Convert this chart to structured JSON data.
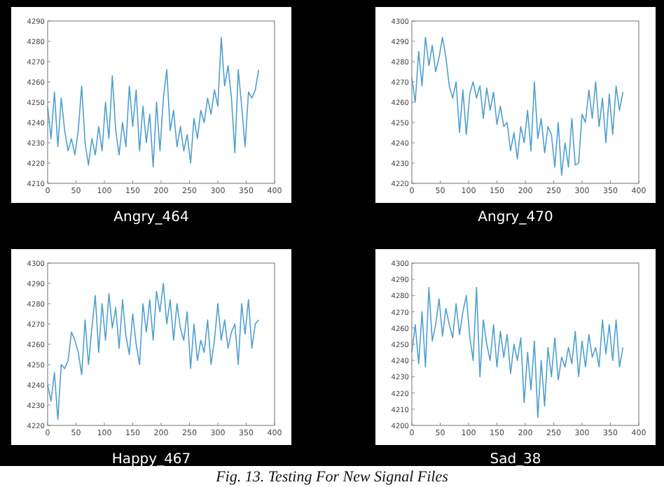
{
  "chart_data": [
    {
      "type": "line",
      "xlabel": "Angry_464",
      "xlim": [
        0,
        400
      ],
      "xticks": [
        0,
        50,
        100,
        150,
        200,
        250,
        300,
        350,
        400
      ],
      "ylim": [
        4210,
        4290
      ],
      "yticks": [
        4210,
        4220,
        4230,
        4240,
        4250,
        4260,
        4270,
        4280,
        4290
      ],
      "x": [
        0,
        6,
        12,
        18,
        24,
        30,
        36,
        42,
        48,
        54,
        60,
        66,
        72,
        78,
        84,
        90,
        96,
        102,
        108,
        114,
        120,
        126,
        132,
        138,
        144,
        150,
        156,
        162,
        168,
        174,
        180,
        186,
        192,
        198,
        204,
        210,
        216,
        222,
        228,
        234,
        240,
        246,
        252,
        258,
        264,
        270,
        276,
        282,
        288,
        294,
        300,
        306,
        312,
        318,
        324,
        330,
        336,
        342,
        348,
        354,
        360,
        366,
        372
      ],
      "series": [
        {
          "color": "#4f9fd0",
          "values": [
            4248,
            4232,
            4255,
            4228,
            4252,
            4236,
            4226,
            4232,
            4224,
            4236,
            4258,
            4230,
            4219,
            4232,
            4224,
            4238,
            4226,
            4250,
            4232,
            4263,
            4236,
            4224,
            4240,
            4228,
            4258,
            4238,
            4256,
            4226,
            4248,
            4230,
            4244,
            4218,
            4250,
            4226,
            4252,
            4266,
            4236,
            4246,
            4228,
            4238,
            4226,
            4234,
            4220,
            4242,
            4232,
            4246,
            4240,
            4252,
            4244,
            4256,
            4248,
            4282,
            4258,
            4268,
            4252,
            4225,
            4266,
            4248,
            4228,
            4255,
            4252,
            4256,
            4266
          ]
        }
      ]
    },
    {
      "type": "line",
      "xlabel": "Angry_470",
      "xlim": [
        0,
        400
      ],
      "xticks": [
        0,
        50,
        100,
        150,
        200,
        250,
        300,
        350,
        400
      ],
      "ylim": [
        4220,
        4300
      ],
      "yticks": [
        4220,
        4230,
        4240,
        4250,
        4260,
        4270,
        4280,
        4290,
        4300
      ],
      "x": [
        0,
        6,
        12,
        18,
        24,
        30,
        36,
        42,
        48,
        54,
        60,
        66,
        72,
        78,
        84,
        90,
        96,
        102,
        108,
        114,
        120,
        126,
        132,
        138,
        144,
        150,
        156,
        162,
        168,
        174,
        180,
        186,
        192,
        198,
        204,
        210,
        216,
        222,
        228,
        234,
        240,
        246,
        252,
        258,
        264,
        270,
        276,
        282,
        288,
        294,
        300,
        306,
        312,
        318,
        324,
        330,
        336,
        342,
        348,
        354,
        360,
        366,
        372
      ],
      "series": [
        {
          "color": "#4f9fd0",
          "values": [
            4272,
            4260,
            4285,
            4268,
            4292,
            4278,
            4288,
            4275,
            4282,
            4292,
            4282,
            4268,
            4262,
            4270,
            4245,
            4266,
            4244,
            4264,
            4270,
            4262,
            4268,
            4252,
            4267,
            4256,
            4265,
            4249,
            4258,
            4248,
            4250,
            4236,
            4245,
            4232,
            4248,
            4240,
            4256,
            4236,
            4270,
            4242,
            4252,
            4235,
            4248,
            4244,
            4228,
            4250,
            4224,
            4240,
            4228,
            4252,
            4229,
            4230,
            4254,
            4250,
            4266,
            4252,
            4270,
            4248,
            4262,
            4240,
            4264,
            4244,
            4268,
            4256,
            4265
          ]
        }
      ]
    },
    {
      "type": "line",
      "xlabel": "Happy_467",
      "xlim": [
        0,
        400
      ],
      "xticks": [
        0,
        50,
        100,
        150,
        200,
        250,
        300,
        350,
        400
      ],
      "ylim": [
        4220,
        4300
      ],
      "yticks": [
        4220,
        4230,
        4240,
        4250,
        4260,
        4270,
        4280,
        4290,
        4300
      ],
      "x": [
        0,
        6,
        12,
        18,
        24,
        30,
        36,
        42,
        48,
        54,
        60,
        66,
        72,
        78,
        84,
        90,
        96,
        102,
        108,
        114,
        120,
        126,
        132,
        138,
        144,
        150,
        156,
        162,
        168,
        174,
        180,
        186,
        192,
        198,
        204,
        210,
        216,
        222,
        228,
        234,
        240,
        246,
        252,
        258,
        264,
        270,
        276,
        282,
        288,
        294,
        300,
        306,
        312,
        318,
        324,
        330,
        336,
        342,
        348,
        354,
        360,
        366,
        372
      ],
      "series": [
        {
          "color": "#4f9fd0",
          "values": [
            4240,
            4232,
            4246,
            4223,
            4250,
            4248,
            4252,
            4266,
            4262,
            4256,
            4245,
            4272,
            4250,
            4268,
            4284,
            4256,
            4280,
            4262,
            4285,
            4268,
            4278,
            4258,
            4282,
            4264,
            4255,
            4275,
            4260,
            4250,
            4280,
            4266,
            4282,
            4262,
            4286,
            4276,
            4290,
            4270,
            4282,
            4262,
            4280,
            4268,
            4262,
            4276,
            4248,
            4270,
            4252,
            4262,
            4256,
            4272,
            4250,
            4262,
            4280,
            4262,
            4272,
            4258,
            4266,
            4270,
            4250,
            4280,
            4265,
            4282,
            4258,
            4270,
            4272
          ]
        }
      ]
    },
    {
      "type": "line",
      "xlabel": "Sad_38",
      "annotations": [
        "Fig. 13. Testing For New Signal Files"
      ],
      "xlim": [
        0,
        400
      ],
      "xticks": [
        0,
        50,
        100,
        150,
        200,
        250,
        300,
        350,
        400
      ],
      "ylim": [
        4200,
        4300
      ],
      "yticks": [
        4200,
        4210,
        4220,
        4230,
        4240,
        4250,
        4260,
        4270,
        4280,
        4290,
        4300
      ],
      "x": [
        0,
        6,
        12,
        18,
        24,
        30,
        36,
        42,
        48,
        54,
        60,
        66,
        72,
        78,
        84,
        90,
        96,
        102,
        108,
        114,
        120,
        126,
        132,
        138,
        144,
        150,
        156,
        162,
        168,
        174,
        180,
        186,
        192,
        198,
        204,
        210,
        216,
        222,
        228,
        234,
        240,
        246,
        252,
        258,
        264,
        270,
        276,
        282,
        288,
        294,
        300,
        306,
        312,
        318,
        324,
        330,
        336,
        342,
        348,
        354,
        360,
        366,
        372
      ],
      "series": [
        {
          "color": "#4f9fd0",
          "values": [
            4245,
            4262,
            4238,
            4270,
            4236,
            4285,
            4252,
            4262,
            4278,
            4255,
            4272,
            4262,
            4254,
            4275,
            4256,
            4270,
            4280,
            4255,
            4240,
            4285,
            4230,
            4265,
            4250,
            4240,
            4262,
            4236,
            4258,
            4242,
            4256,
            4232,
            4250,
            4240,
            4254,
            4214,
            4245,
            4222,
            4252,
            4205,
            4240,
            4212,
            4248,
            4230,
            4254,
            4228,
            4242,
            4236,
            4248,
            4238,
            4258,
            4230,
            4252,
            4236,
            4256,
            4242,
            4248,
            4236,
            4265,
            4244,
            4262,
            4240,
            4265,
            4236,
            4248
          ]
        }
      ]
    }
  ]
}
